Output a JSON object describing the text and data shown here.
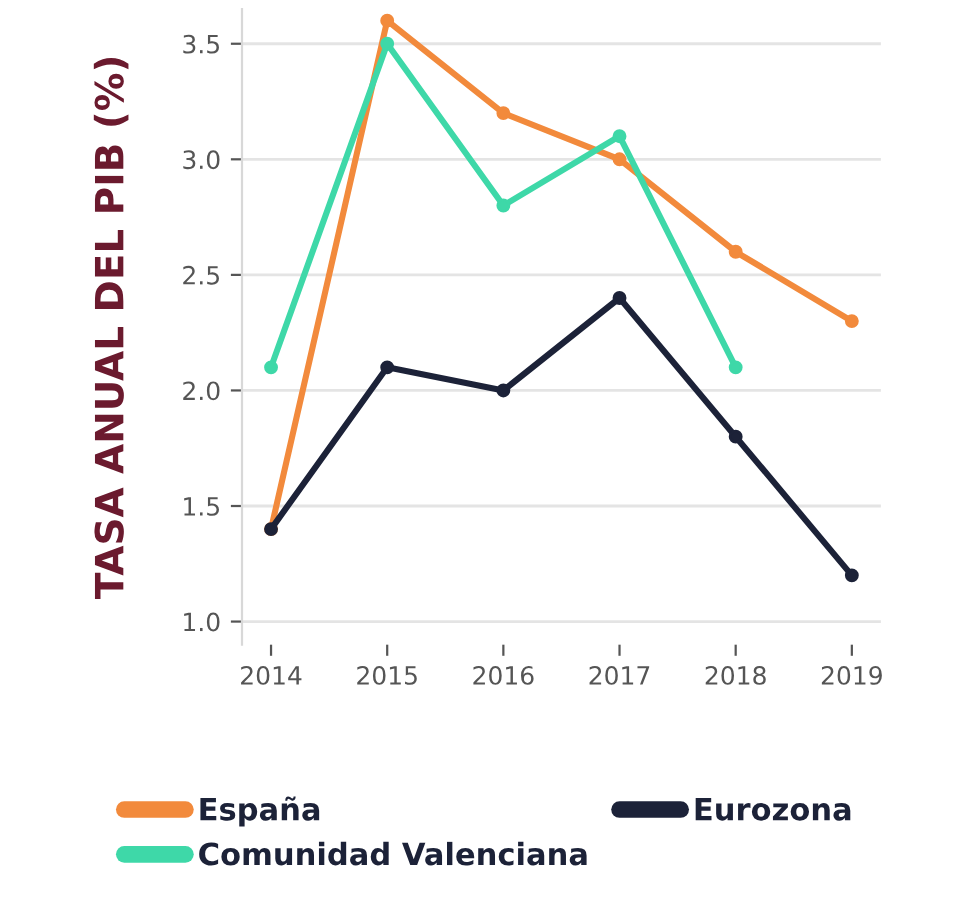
{
  "chart_data": {
    "type": "line",
    "ylabel": "TASA ANUAL DEL PIB (%)",
    "x": [
      2014,
      2015,
      2016,
      2017,
      2018,
      2019
    ],
    "series": [
      {
        "name": "España",
        "color": "#f28a3c",
        "values": [
          1.4,
          3.6,
          3.2,
          3.0,
          2.6,
          2.3
        ]
      },
      {
        "name": "Comunidad Valenciana",
        "color": "#3ed8a8",
        "values": [
          2.1,
          3.5,
          2.8,
          3.1,
          2.1,
          null
        ]
      },
      {
        "name": "Eurozona",
        "color": "#1c2238",
        "values": [
          1.4,
          2.1,
          2.0,
          2.4,
          1.8,
          1.2
        ]
      }
    ],
    "xlim": [
      2013.75,
      2019.25
    ],
    "ylim": [
      0.9,
      3.65
    ],
    "xticks": [
      2014,
      2015,
      2016,
      2017,
      2018,
      2019
    ],
    "yticks": [
      {
        "value": 1.0,
        "label": "1.0"
      },
      {
        "value": 1.5,
        "label": "1.5"
      },
      {
        "value": 2.0,
        "label": "2.0"
      },
      {
        "value": 2.5,
        "label": "2.5"
      },
      {
        "value": 3.0,
        "label": "3.0"
      },
      {
        "value": 3.5,
        "label": "3.5"
      }
    ],
    "grid": "y",
    "legend": "bottom",
    "marker": "circle",
    "line_style": "solid"
  }
}
